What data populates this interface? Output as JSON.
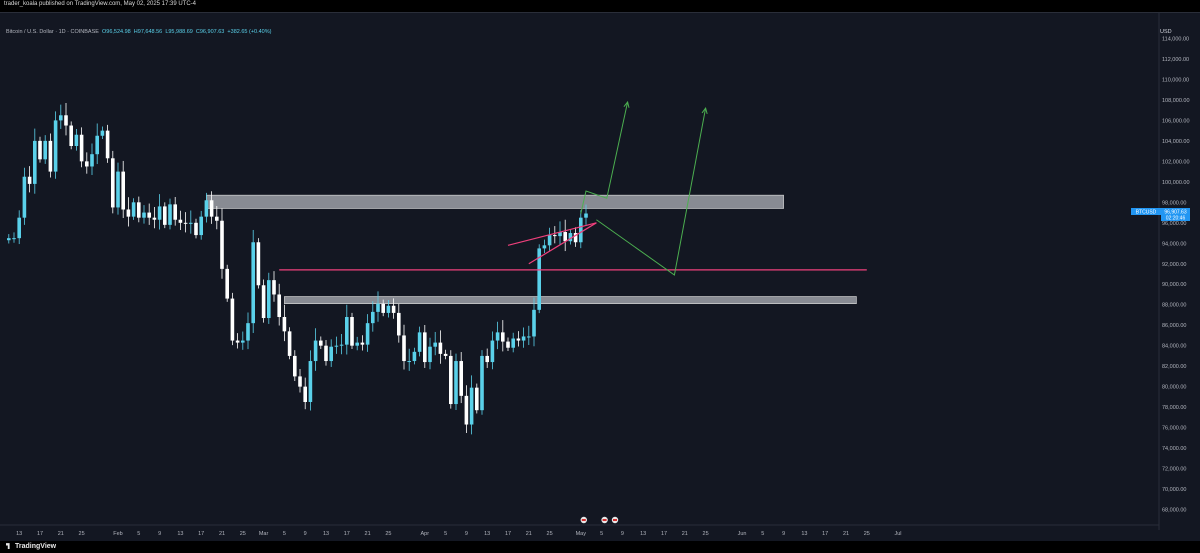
{
  "header": {
    "publisher": "trader_koala published on TradingView.com, May 02, 2025 17:39 UTC-4"
  },
  "legend": {
    "symbol": "Bitcoin / U.S. Dollar · 1D · COINBASE",
    "open": "O96,524.98",
    "high": "H97,648.56",
    "low": "L95,988.69",
    "close": "C96,907.63",
    "change": "+382.65 (+0.40%)"
  },
  "price_axis": {
    "currency": "USD"
  },
  "price_label": {
    "symbol": "BTCUSD",
    "price": "96,907.63",
    "countdown": "02:20:46"
  },
  "footer": {
    "brand": "TradingView"
  },
  "colors": {
    "up": "#5ad1ea",
    "down": "#ffffff",
    "pink": "#f0407c",
    "green": "#4caf50",
    "zone": "#b0b3ba",
    "background": "#131722"
  },
  "chart_data": {
    "type": "candlestick",
    "symbol": "BTCUSD",
    "timeframe": "1D",
    "ylim": [
      66000,
      116000
    ],
    "y_ticks": [
      68000,
      70000,
      72000,
      74000,
      76000,
      78000,
      80000,
      82000,
      84000,
      86000,
      88000,
      90000,
      92000,
      94000,
      96000,
      98000,
      100000,
      102000,
      104000,
      106000,
      108000,
      110000,
      112000,
      114000
    ],
    "y_tick_labels": [
      "68,000.00",
      "70,000.00",
      "72,000.00",
      "74,000.00",
      "76,000.00",
      "78,000.00",
      "80,000.00",
      "82,000.00",
      "84,000.00",
      "86,000.00",
      "88,000.00",
      "90,000.00",
      "92,000.00",
      "94,000.00",
      "96,000.00",
      "98,000.00",
      "100,000.00",
      "102,000.00",
      "104,000.00",
      "106,000.00",
      "108,000.00",
      "110,000.00",
      "112,000.00",
      "114,000.00"
    ],
    "x_start": "2025-01-11",
    "x_labels": [
      {
        "date": "2025-01-13",
        "label": "13"
      },
      {
        "date": "2025-01-17",
        "label": "17"
      },
      {
        "date": "2025-01-21",
        "label": "21"
      },
      {
        "date": "2025-01-25",
        "label": "25"
      },
      {
        "date": "2025-02-01",
        "label": "Feb"
      },
      {
        "date": "2025-02-05",
        "label": "5"
      },
      {
        "date": "2025-02-09",
        "label": "9"
      },
      {
        "date": "2025-02-13",
        "label": "13"
      },
      {
        "date": "2025-02-17",
        "label": "17"
      },
      {
        "date": "2025-02-21",
        "label": "21"
      },
      {
        "date": "2025-02-25",
        "label": "25"
      },
      {
        "date": "2025-03-01",
        "label": "Mar"
      },
      {
        "date": "2025-03-05",
        "label": "5"
      },
      {
        "date": "2025-03-09",
        "label": "9"
      },
      {
        "date": "2025-03-13",
        "label": "13"
      },
      {
        "date": "2025-03-17",
        "label": "17"
      },
      {
        "date": "2025-03-21",
        "label": "21"
      },
      {
        "date": "2025-03-25",
        "label": "25"
      },
      {
        "date": "2025-04-01",
        "label": "Apr"
      },
      {
        "date": "2025-04-05",
        "label": "5"
      },
      {
        "date": "2025-04-09",
        "label": "9"
      },
      {
        "date": "2025-04-13",
        "label": "13"
      },
      {
        "date": "2025-04-17",
        "label": "17"
      },
      {
        "date": "2025-04-21",
        "label": "21"
      },
      {
        "date": "2025-04-25",
        "label": "25"
      },
      {
        "date": "2025-05-01",
        "label": "May"
      },
      {
        "date": "2025-05-05",
        "label": "5"
      },
      {
        "date": "2025-05-09",
        "label": "9"
      },
      {
        "date": "2025-05-13",
        "label": "13"
      },
      {
        "date": "2025-05-17",
        "label": "17"
      },
      {
        "date": "2025-05-21",
        "label": "21"
      },
      {
        "date": "2025-05-25",
        "label": "25"
      },
      {
        "date": "2025-06-01",
        "label": "Jun"
      },
      {
        "date": "2025-06-05",
        "label": "5"
      },
      {
        "date": "2025-06-09",
        "label": "9"
      },
      {
        "date": "2025-06-13",
        "label": "13"
      },
      {
        "date": "2025-06-17",
        "label": "17"
      },
      {
        "date": "2025-06-21",
        "label": "21"
      },
      {
        "date": "2025-06-25",
        "label": "25"
      },
      {
        "date": "2025-07-01",
        "label": "Jul"
      }
    ],
    "closes": [
      94500,
      94500,
      96500,
      100500,
      99800,
      104000,
      102200,
      104000,
      101000,
      106000,
      106500,
      105500,
      103500,
      104600,
      102000,
      101500,
      102700,
      104500,
      105000,
      102300,
      97500,
      101000,
      97300,
      96600,
      98000,
      96500,
      97000,
      96500,
      96300,
      97600,
      95800,
      97800,
      96300,
      96000,
      95900,
      96000,
      94800,
      96600,
      98200,
      96600,
      96200,
      91500,
      88600,
      84500,
      84300,
      84500,
      86200,
      94100,
      89900,
      86700,
      90400,
      89000,
      86800,
      85400,
      83000,
      81000,
      80000,
      78500,
      82500,
      84500,
      84000,
      82500,
      83900,
      84000,
      84100,
      86800,
      84000,
      84300,
      84100,
      86200,
      87300,
      88100,
      87200,
      87900,
      87200,
      85000,
      82500,
      82500,
      83400,
      85300,
      82400,
      83900,
      84300,
      83200,
      83000,
      78300,
      82500,
      79100,
      76300,
      79900,
      77700,
      83000,
      82400,
      84500,
      85300,
      84400,
      83800,
      84700,
      84500,
      84900,
      84900,
      87500,
      93500,
      93800,
      94800,
      94700,
      95100,
      94200,
      95000,
      94100,
      96500,
      96907.63
    ],
    "zones": [
      {
        "from": 97400,
        "to": 98700,
        "start": "2025-02-18",
        "end": "2025-06-09"
      },
      {
        "from": 88100,
        "to": 88800,
        "start": "2025-03-05",
        "end": "2025-06-23"
      }
    ],
    "support_line": {
      "price": 91400,
      "start": "2025-03-04",
      "end": "2025-06-25"
    },
    "wedge": [
      {
        "from": [
          "2025-04-17",
          93800
        ],
        "to": [
          "2025-05-04",
          96000
        ]
      },
      {
        "from": [
          "2025-04-21",
          92000
        ],
        "to": [
          "2025-05-04",
          96000
        ]
      }
    ],
    "projection_paths": [
      [
        [
          "2025-05-01",
          96900
        ],
        [
          "2025-05-02",
          99100
        ],
        [
          "2025-05-06",
          98400
        ],
        [
          "2025-05-10",
          107800
        ]
      ],
      [
        [
          "2025-05-04",
          96300
        ],
        [
          "2025-05-19",
          90900
        ],
        [
          "2025-05-25",
          107200
        ]
      ]
    ],
    "event_markers": [
      "2025-05-01",
      "2025-05-05",
      "2025-05-07"
    ]
  }
}
